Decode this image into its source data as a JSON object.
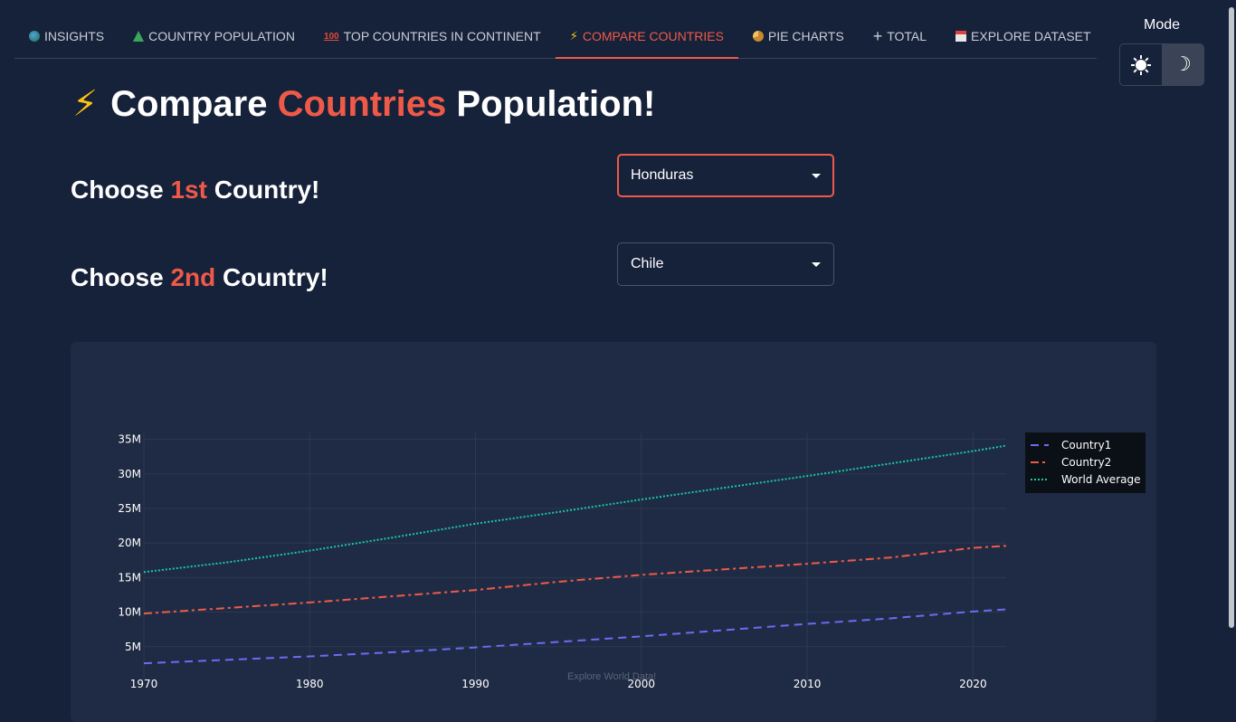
{
  "nav": {
    "tabs": [
      {
        "label": "INSIGHTS",
        "icon": "globe-icon",
        "active": false
      },
      {
        "label": "COUNTRY POPULATION",
        "icon": "tree-icon",
        "active": false
      },
      {
        "label": "TOP COUNTRIES IN CONTINENT",
        "icon": "hundred-icon",
        "active": false
      },
      {
        "label": "COMPARE COUNTRIES",
        "icon": "bolt-icon",
        "active": true
      },
      {
        "label": "PIE CHARTS",
        "icon": "pie-icon",
        "active": false
      },
      {
        "label": "TOTAL",
        "icon": "plus-icon",
        "active": false
      },
      {
        "label": "EXPLORE DATASET",
        "icon": "calendar-icon",
        "active": false
      }
    ]
  },
  "mode": {
    "label": "Mode",
    "selected": "dark"
  },
  "page": {
    "title_pre": "Compare ",
    "title_accent": "Countries",
    "title_post": " Population!",
    "choose1_pre": "Choose ",
    "choose1_accent": "1st",
    "choose1_post": " Country!",
    "choose2_pre": "Choose ",
    "choose2_accent": "2nd",
    "choose2_post": " Country!"
  },
  "selects": {
    "country1": "Honduras",
    "country2": "Chile"
  },
  "colors": {
    "accent": "#ef5a48",
    "background": "#16213a",
    "card": "#1f2b44"
  },
  "footer": {
    "text": "Explore World Data!"
  },
  "chart_data": {
    "type": "line",
    "x": [
      1970,
      1975,
      1980,
      1985,
      1990,
      1995,
      2000,
      2005,
      2010,
      2015,
      2020,
      2022
    ],
    "xticks": [
      1970,
      1980,
      1990,
      2000,
      2010,
      2020
    ],
    "yticks": [
      5000000,
      10000000,
      15000000,
      20000000,
      25000000,
      30000000,
      35000000
    ],
    "ytick_labels": [
      "5M",
      "10M",
      "15M",
      "20M",
      "25M",
      "30M",
      "35M"
    ],
    "xlim": [
      1970,
      2022
    ],
    "ylim": [
      0,
      36000000
    ],
    "grid": true,
    "legend": "top-right",
    "series": [
      {
        "name": "Country1",
        "color": "#6b6cf2",
        "dash": "dash",
        "values": [
          2600000,
          3100000,
          3600000,
          4200000,
          4900000,
          5700000,
          6500000,
          7400000,
          8300000,
          9100000,
          10100000,
          10400000
        ]
      },
      {
        "name": "Country2",
        "color": "#ef5a48",
        "dash": "dashdot",
        "values": [
          9800000,
          10600000,
          11400000,
          12300000,
          13200000,
          14400000,
          15400000,
          16200000,
          17000000,
          17900000,
          19300000,
          19600000
        ]
      },
      {
        "name": "World Average",
        "color": "#19c9a0",
        "dash": "dot",
        "values": [
          15800000,
          17200000,
          18900000,
          20800000,
          22800000,
          24500000,
          26300000,
          28000000,
          29700000,
          31500000,
          33300000,
          34100000
        ]
      }
    ]
  }
}
